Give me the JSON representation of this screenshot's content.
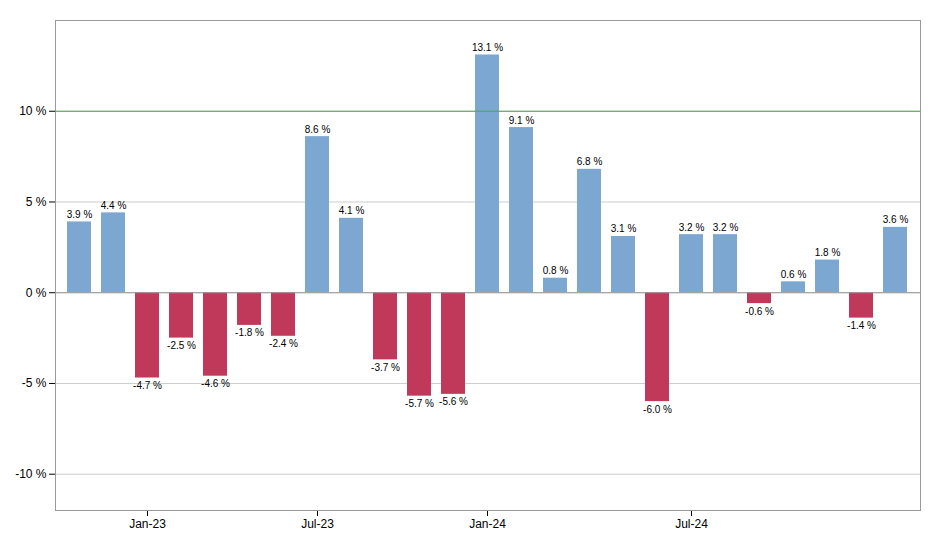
{
  "chart_data": {
    "type": "bar",
    "categories": [
      null,
      null,
      "Jan-23",
      null,
      null,
      null,
      null,
      "Jul-23",
      null,
      null,
      null,
      null,
      "Jan-24",
      null,
      null,
      null,
      null,
      null,
      "Jul-24",
      null,
      null,
      null,
      null,
      null,
      null
    ],
    "values": [
      3.9,
      4.4,
      -4.7,
      -2.5,
      -4.6,
      -1.8,
      -2.4,
      8.6,
      4.1,
      -3.7,
      -5.7,
      -5.6,
      13.1,
      9.1,
      0.8,
      6.8,
      3.1,
      -6.0,
      3.2,
      3.2,
      -0.6,
      0.6,
      1.8,
      -1.4,
      3.6
    ],
    "value_labels": [
      "3.9 %",
      "4.4 %",
      "-4.7 %",
      "-2.5 %",
      "-4.6 %",
      "-1.8 %",
      "-2.4 %",
      "8.6 %",
      "4.1 %",
      "-3.7 %",
      "-5.7 %",
      "-5.6 %",
      "13.1 %",
      "9.1 %",
      "0.8 %",
      "6.8 %",
      "3.1 %",
      "-6.0 %",
      "3.2 %",
      "3.2 %",
      "-0.6 %",
      "0.6 %",
      "1.8 %",
      "-1.4 %",
      "3.6 %"
    ],
    "colors": [
      "#7BA7D0",
      "#7BA7D0",
      "#C0395A",
      "#C0395A",
      "#C0395A",
      "#C0395A",
      "#C0395A",
      "#7BA7D0",
      "#7BA7D0",
      "#C0395A",
      "#C0395A",
      "#C0395A",
      "#7BA7D0",
      "#7BA7D0",
      "#7BA7D0",
      "#7BA7D0",
      "#7BA7D0",
      "#C0395A",
      "#7BA7D0",
      "#7BA7D0",
      "#C0395A",
      "#7BA7D0",
      "#7BA7D0",
      "#C0395A",
      "#7BA7D0"
    ],
    "reference_lines": [
      {
        "y": 10,
        "color": "#44AA44"
      }
    ],
    "ylim": [
      -12,
      15
    ],
    "yticks": [
      {
        "value": -10,
        "label": "-10 %"
      },
      {
        "value": -5,
        "label": "-5 %"
      },
      {
        "value": 0,
        "label": "0 %"
      },
      {
        "value": 5,
        "label": "5 %"
      },
      {
        "value": 10,
        "label": "10 %"
      }
    ],
    "grid": true,
    "data_labels": true
  }
}
